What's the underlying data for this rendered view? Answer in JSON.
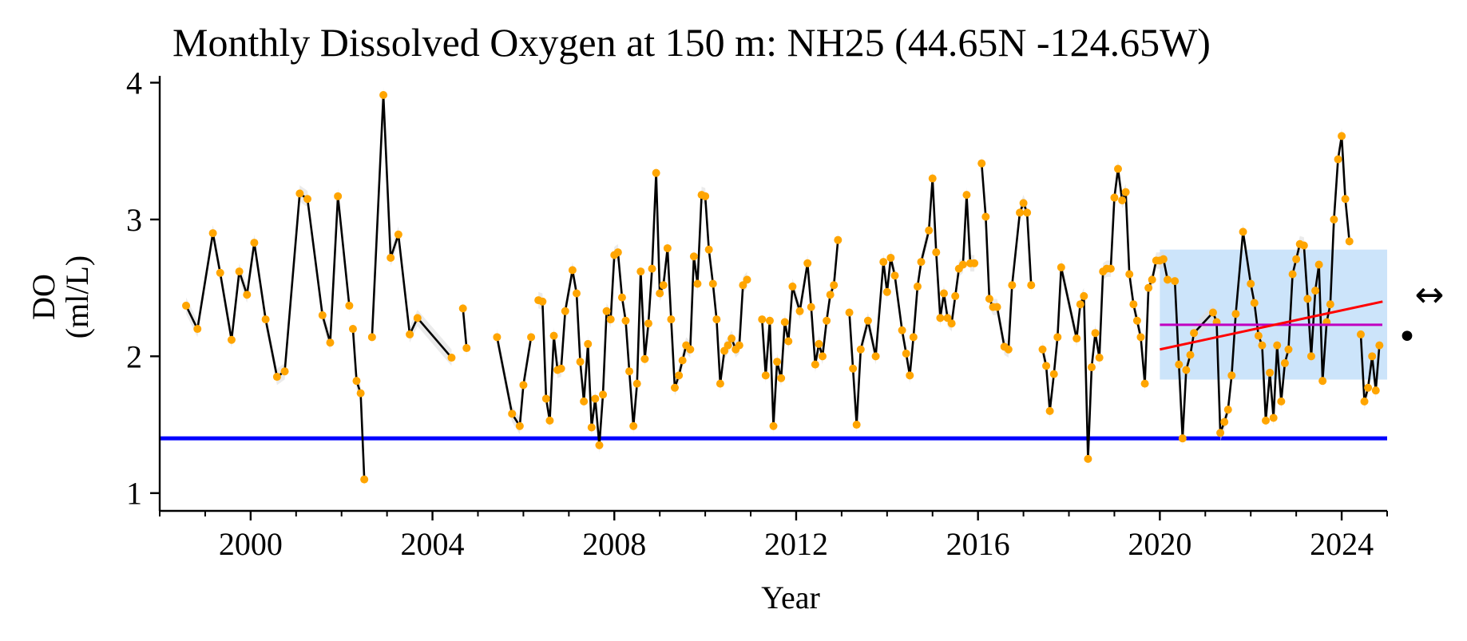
{
  "chart_data": {
    "type": "line",
    "title": "Monthly Dissolved Oxygen at 150 m: NH25 (44.65N -124.65W)",
    "xlabel": "Year",
    "ylabel_line1": "DO",
    "ylabel_line2": "(ml/L)",
    "xlim": [
      1998.0,
      2025.0
    ],
    "ylim": [
      0.87,
      4.05
    ],
    "xticks": [
      2000,
      2004,
      2008,
      2012,
      2016,
      2020,
      2024
    ],
    "xticks_minor_step": 1,
    "yticks": [
      1,
      2,
      3,
      4
    ],
    "grid": false,
    "legend": "none",
    "hypoxia_threshold": 1.4,
    "recent_window": {
      "x0": 2020.0,
      "x1": 2025.0,
      "y0": 1.83,
      "y1": 2.78
    },
    "recent_mean": 2.23,
    "recent_trend": {
      "x": [
        2020.0,
        2024.9
      ],
      "y": [
        2.05,
        2.4
      ]
    },
    "series": [
      {
        "x": [
          1998.58,
          1998.83,
          1999.17,
          1999.33,
          1999.58,
          1999.75,
          1999.92,
          2000.08,
          2000.33,
          2000.58,
          2000.75,
          2001.08,
          2001.25,
          2001.58,
          2001.75,
          2001.92,
          2002.17
        ],
        "y": [
          2.37,
          2.2,
          2.9,
          2.61,
          2.12,
          2.62,
          2.45,
          2.83,
          2.27,
          1.85,
          1.89,
          3.19,
          3.15,
          2.3,
          2.1,
          3.17,
          2.37
        ]
      },
      {
        "x": [
          2002.25,
          2002.33,
          2002.42,
          2002.5
        ],
        "y": [
          2.2,
          1.82,
          1.73,
          1.1
        ]
      },
      {
        "x": [
          2002.67,
          2002.92,
          2003.08,
          2003.25,
          2003.5,
          2003.67,
          2004.42
        ],
        "y": [
          2.14,
          3.91,
          2.72,
          2.89,
          2.16,
          2.28,
          1.99
        ]
      },
      {
        "x": [
          2004.67,
          2004.75
        ],
        "y": [
          2.35,
          2.06
        ]
      },
      {
        "x": [
          2005.42,
          2005.75,
          2005.92,
          2006.0,
          2006.17
        ],
        "y": [
          2.14,
          1.58,
          1.49,
          1.79,
          2.14
        ]
      },
      {
        "x": [
          2006.33,
          2006.42,
          2006.5,
          2006.58,
          2006.67,
          2006.75,
          2006.83,
          2006.92,
          2007.08,
          2007.17,
          2007.25,
          2007.33,
          2007.42,
          2007.5,
          2007.58,
          2007.67,
          2007.75,
          2007.83,
          2007.92,
          2008.0,
          2008.08,
          2008.17,
          2008.25,
          2008.33,
          2008.42,
          2008.5,
          2008.58,
          2008.67,
          2008.75,
          2008.83,
          2008.92,
          2009.0,
          2009.08,
          2009.17,
          2009.25,
          2009.33,
          2009.42,
          2009.5,
          2009.58,
          2009.67,
          2009.75,
          2009.83,
          2009.92,
          2010.0,
          2010.08,
          2010.17,
          2010.25,
          2010.33,
          2010.42,
          2010.5,
          2010.58,
          2010.67,
          2010.75,
          2010.83,
          2010.92
        ],
        "y": [
          2.41,
          2.4,
          1.69,
          1.53,
          2.15,
          1.9,
          1.91,
          2.33,
          2.63,
          2.46,
          1.96,
          1.67,
          2.09,
          1.48,
          1.69,
          1.35,
          1.72,
          2.33,
          2.27,
          2.74,
          2.76,
          2.43,
          2.26,
          1.89,
          1.49,
          1.8,
          2.62,
          1.98,
          2.24,
          2.64,
          3.34,
          2.46,
          2.52,
          2.79,
          2.27,
          1.77,
          1.86,
          1.97,
          2.08,
          2.05,
          2.73,
          2.53,
          3.18,
          3.17,
          2.78,
          2.53,
          2.27,
          1.8,
          2.04,
          2.08,
          2.13,
          2.05,
          2.08,
          2.52,
          2.56
        ]
      },
      {
        "x": [
          2011.25,
          2011.33,
          2011.42,
          2011.5,
          2011.58,
          2011.67,
          2011.75,
          2011.83,
          2011.92,
          2012.08,
          2012.25,
          2012.33,
          2012.42,
          2012.5,
          2012.58,
          2012.67,
          2012.75,
          2012.83,
          2012.92
        ],
        "y": [
          2.27,
          1.86,
          2.26,
          1.49,
          1.96,
          1.84,
          2.25,
          2.11,
          2.51,
          2.33,
          2.68,
          2.36,
          1.94,
          2.09,
          2.0,
          2.26,
          2.45,
          2.52,
          2.85
        ]
      },
      {
        "x": [
          2013.17,
          2013.25,
          2013.33,
          2013.42,
          2013.58,
          2013.75,
          2013.92,
          2014.0,
          2014.08,
          2014.17,
          2014.33,
          2014.42,
          2014.5,
          2014.58,
          2014.67,
          2014.75,
          2014.92,
          2015.0,
          2015.08,
          2015.17,
          2015.25,
          2015.33,
          2015.42,
          2015.5,
          2015.58,
          2015.67,
          2015.75,
          2015.83,
          2015.92
        ],
        "y": [
          2.32,
          1.91,
          1.5,
          2.05,
          2.26,
          2.0,
          2.69,
          2.47,
          2.72,
          2.59,
          2.19,
          2.02,
          1.86,
          2.14,
          2.51,
          2.69,
          2.92,
          3.3,
          2.76,
          2.28,
          2.46,
          2.28,
          2.24,
          2.44,
          2.64,
          2.67,
          3.18,
          2.68,
          2.68
        ]
      },
      {
        "x": [
          2016.08,
          2016.17,
          2016.25,
          2016.33,
          2016.42,
          2016.58,
          2016.67,
          2016.75,
          2016.92,
          2017.0,
          2017.08,
          2017.17
        ],
        "y": [
          3.41,
          3.02,
          2.42,
          2.36,
          2.36,
          2.07,
          2.05,
          2.52,
          3.05,
          3.12,
          3.05,
          2.52
        ]
      },
      {
        "x": [
          2017.42,
          2017.5,
          2017.58,
          2017.67,
          2017.75,
          2017.83,
          2018.17,
          2018.25,
          2018.33,
          2018.42,
          2018.5,
          2018.58,
          2018.67,
          2018.75,
          2018.83,
          2018.92,
          2019.0,
          2019.08,
          2019.17,
          2019.25,
          2019.33,
          2019.42,
          2019.5,
          2019.58,
          2019.67,
          2019.75,
          2019.83,
          2019.92,
          2020.0,
          2020.08,
          2020.17
        ],
        "y": [
          2.05,
          1.93,
          1.6,
          1.87,
          2.14,
          2.65,
          2.13,
          2.38,
          2.44,
          1.25,
          1.92,
          2.17,
          1.99,
          2.62,
          2.64,
          2.64,
          3.16,
          3.37,
          3.14,
          3.2,
          2.6,
          2.38,
          2.26,
          2.14,
          1.8,
          2.5,
          2.56,
          2.7,
          2.7,
          2.71,
          2.56
        ]
      },
      {
        "x": [
          2020.33,
          2020.42,
          2020.5,
          2020.58,
          2020.67,
          2020.75,
          2021.17,
          2021.25,
          2021.33,
          2021.42,
          2021.5,
          2021.58,
          2021.67,
          2021.83,
          2022.0,
          2022.08,
          2022.17,
          2022.25,
          2022.33,
          2022.42,
          2022.5,
          2022.58,
          2022.67,
          2022.75,
          2022.83,
          2022.92,
          2023.0,
          2023.08,
          2023.17,
          2023.25,
          2023.33,
          2023.42,
          2023.5,
          2023.58,
          2023.67,
          2023.75,
          2023.83,
          2023.92,
          2024.0,
          2024.08,
          2024.17
        ],
        "y": [
          2.55,
          1.94,
          1.4,
          1.9,
          2.01,
          2.17,
          2.32,
          2.25,
          1.44,
          1.52,
          1.61,
          1.86,
          2.31,
          2.91,
          2.53,
          2.39,
          2.15,
          2.08,
          1.53,
          1.88,
          1.55,
          2.08,
          1.67,
          1.95,
          2.05,
          2.6,
          2.71,
          2.82,
          2.81,
          2.42,
          2.0,
          2.48,
          2.67,
          1.82,
          2.25,
          2.38,
          3.0,
          3.44,
          3.61,
          3.15,
          2.84
        ]
      },
      {
        "x": [
          2024.42,
          2024.5,
          2024.58,
          2024.67,
          2024.75,
          2024.83
        ],
        "y": [
          2.16,
          1.67,
          1.77,
          2.0,
          1.75,
          2.08
        ]
      }
    ]
  },
  "side_symbols": {
    "arrow": "↔",
    "dot": "•"
  },
  "colors": {
    "line": "#000000",
    "marker": "#FFA500",
    "threshold": "#0000FF",
    "window_fill": "#CCE4FA",
    "mean_line": "#C000C0",
    "trend_line": "#FF0000",
    "uncertainty_band": "#DDDDDD"
  }
}
